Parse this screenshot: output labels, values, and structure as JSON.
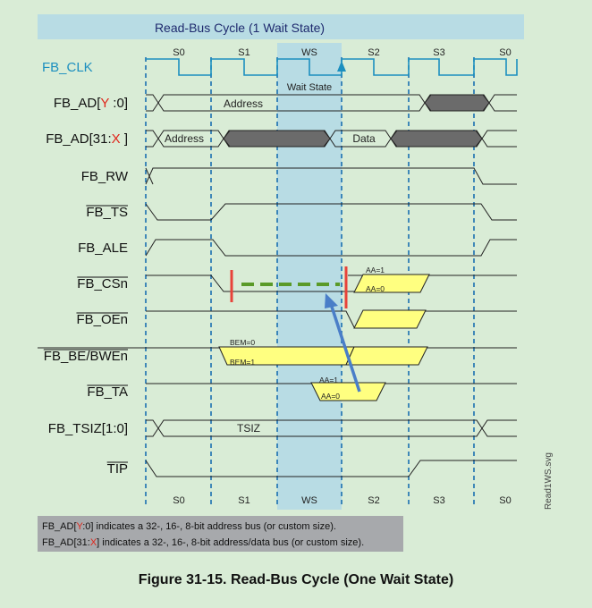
{
  "title": "Read-Bus Cycle (1 Wait State)",
  "states": [
    "S0",
    "S1",
    "WS",
    "S2",
    "S3",
    "S0"
  ],
  "clock": {
    "name": "FB_CLK"
  },
  "wait_label": "Wait State",
  "signals": [
    {
      "id": "ad_y",
      "parts": [
        {
          "t": "FB_AD["
        },
        {
          "t": "Y",
          "red": true
        },
        {
          "t": " :0]"
        }
      ],
      "overline": false
    },
    {
      "id": "ad_31x",
      "parts": [
        {
          "t": "FB_AD[31:"
        },
        {
          "t": "X",
          "red": true
        },
        {
          "t": " ]"
        }
      ],
      "overline": false
    },
    {
      "id": "rw",
      "parts": [
        {
          "t": "FB_RW"
        }
      ],
      "overline": false
    },
    {
      "id": "ts",
      "parts": [
        {
          "t": "FB_TS"
        }
      ],
      "overline": true
    },
    {
      "id": "ale",
      "parts": [
        {
          "t": "FB_ALE"
        }
      ],
      "overline": false
    },
    {
      "id": "csn",
      "parts": [
        {
          "t": "FB_CSn"
        }
      ],
      "overline": true
    },
    {
      "id": "oen",
      "parts": [
        {
          "t": "FB_OEn"
        }
      ],
      "overline": true
    },
    {
      "id": "bebwe",
      "parts": [
        {
          "t": "FB_BE/BWEn"
        }
      ],
      "overline": true
    },
    {
      "id": "ta",
      "parts": [
        {
          "t": "FB_TA"
        }
      ],
      "overline": true
    },
    {
      "id": "tsiz",
      "parts": [
        {
          "t": "FB_TSIZ[1:0]"
        }
      ],
      "overline": false
    },
    {
      "id": "tip",
      "parts": [
        {
          "t": "TIP"
        }
      ],
      "overline": true
    }
  ],
  "bus_labels": {
    "address": "Address",
    "address2": "Address",
    "data": "Data",
    "tsiz": "TSIZ"
  },
  "aa_labels": {
    "cs_aa1": "AA=1",
    "cs_aa0": "AA=0",
    "be_bem0": "BEM=0",
    "be_bem1": "BEM=1",
    "ta_aa1": "AA=1",
    "ta_aa0": "AA=0"
  },
  "notes": [
    [
      {
        "t": "FB_AD["
      },
      {
        "t": "Y",
        "red": true
      },
      {
        "t": ":0] indicates a 32-, 16-, 8-bit address bus (or custom size)."
      }
    ],
    [
      {
        "t": "FB_AD[31:"
      },
      {
        "t": "X",
        "red": true
      },
      {
        "t": "] indicates a 32-, 16-, 8-bit address/data bus (or custom size)."
      }
    ]
  ],
  "side_label": "Read1WS.svg",
  "caption": "Figure 31-15. Read-Bus Cycle (One Wait State)",
  "colors": {
    "page_bg": "#d9ecd6",
    "header_bg": "#b8dce4",
    "wait_band": "#b8dce4",
    "clock": "#1c8fbf",
    "dashed_divider": "#1a6fb0",
    "yellow_fill": "#ffff80",
    "gray_fill": "#6b6b6b",
    "red_marker": "#e8433a",
    "green_dashes": "#5a9a28",
    "arrow": "#4a7ec8",
    "note_bg": "#a7a9ac",
    "accent_red": "#e0261b"
  }
}
